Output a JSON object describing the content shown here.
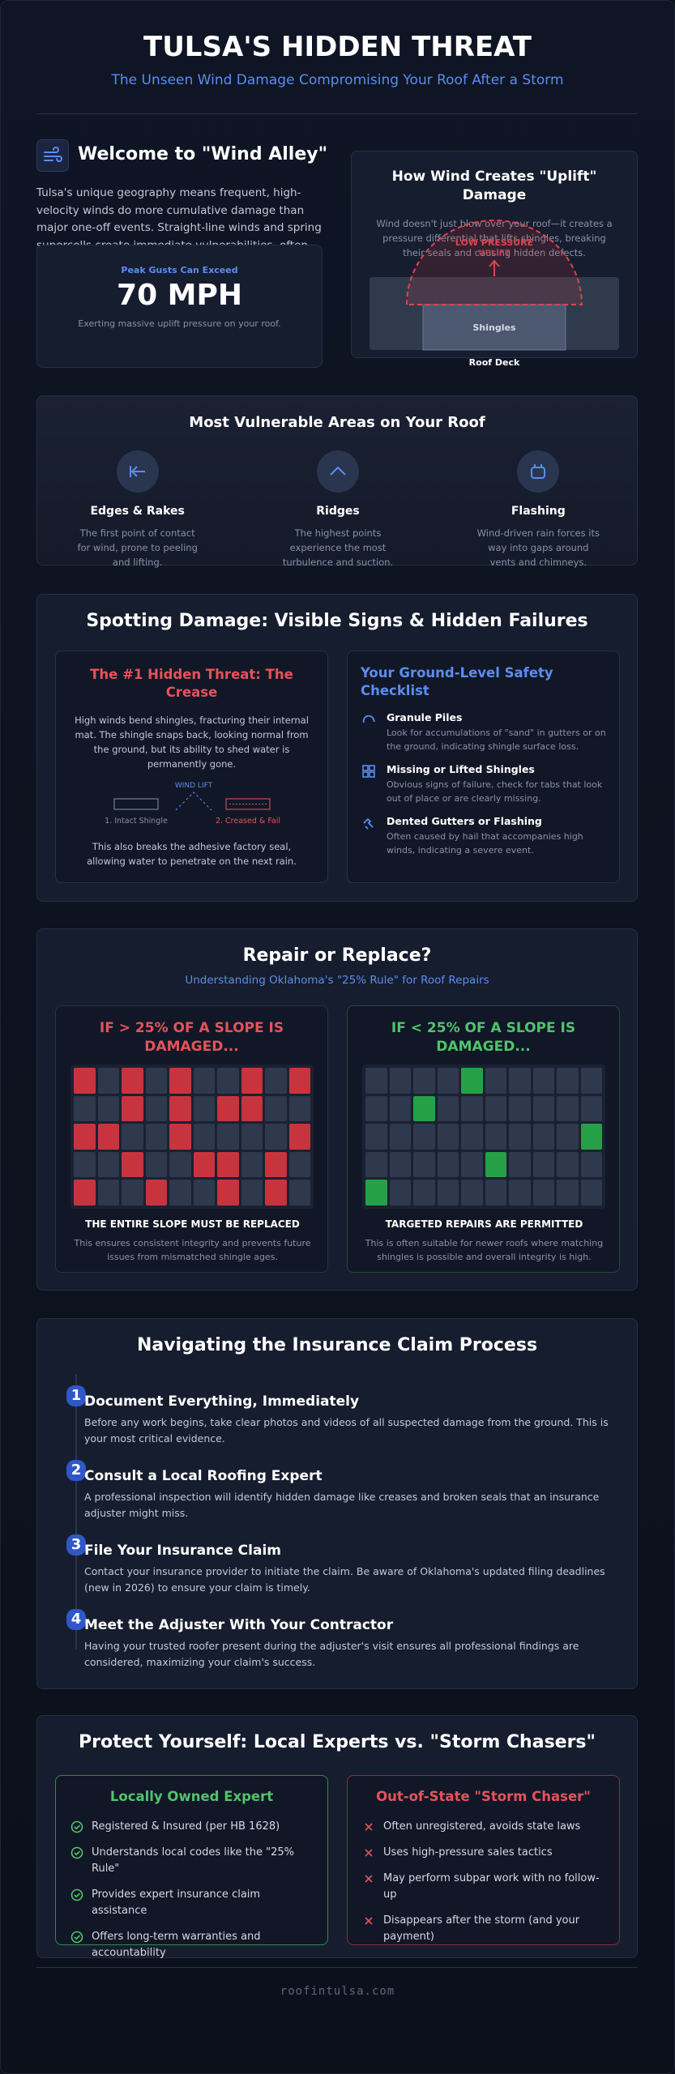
{
  "header": {
    "title": "TULSA'S HIDDEN THREAT",
    "subtitle": "The Unseen Wind Damage Compromising Your Roof After a Storm"
  },
  "intro": {
    "heading": "Welcome to \"Wind Alley\"",
    "body": "Tulsa's unique geography means frequent, high-velocity winds do more cumulative damage than major one-off events. Straight-line winds and spring supercells create immediate vulnerabilities, often without leaving a single shingle on your lawn.",
    "stat": {
      "label": "Peak Gusts Can Exceed",
      "value": "70 MPH",
      "note": "Exerting massive uplift pressure on your roof."
    }
  },
  "uplift": {
    "title": "How Wind Creates \"Uplift\" Damage",
    "body": "Wind doesn't just blow over your roof—it creates a pressure differential that lifts shingles, breaking their seals and causing hidden defects.",
    "diagram": {
      "pressure_label": "LOW PRESSURE",
      "lift_label": "UPLIFT",
      "shingles_label": "Shingles",
      "deck_label": "Roof Deck"
    }
  },
  "vulnerable": {
    "title": "Most Vulnerable Areas on Your Roof",
    "items": [
      {
        "title": "Edges & Rakes",
        "body": "The first point of contact for wind, prone to peeling and lifting."
      },
      {
        "title": "Ridges",
        "body": "The highest points experience the most turbulence and suction."
      },
      {
        "title": "Flashing",
        "body": "Wind-driven rain forces its way into gaps around vents and chimneys."
      }
    ]
  },
  "spotting": {
    "title": "Spotting Damage: Visible Signs & Hidden Failures",
    "crease": {
      "title": "The #1 Hidden Threat: The Crease",
      "body": "High winds bend shingles, fracturing their internal mat. The shingle snaps back, looking normal from the ground, but its ability to shed water is permanently gone.",
      "diagram": {
        "lift_label": "WIND LIFT",
        "intact_label": "1. Intact Shingle",
        "creased_label": "2. Creased & Fail"
      },
      "footer": "This also breaks the adhesive factory seal, allowing water to penetrate on the next rain."
    },
    "checklist": {
      "title": "Your Ground-Level Safety Checklist",
      "items": [
        {
          "title": "Granule Piles",
          "body": "Look for accumulations of \"sand\" in gutters or on the ground, indicating shingle surface loss."
        },
        {
          "title": "Missing or Lifted Shingles",
          "body": "Obvious signs of failure, check for tabs that look out of place or are clearly missing."
        },
        {
          "title": "Dented Gutters or Flashing",
          "body": "Often caused by hail that accompanies high winds, indicating a severe event."
        }
      ]
    }
  },
  "repair": {
    "title": "Repair or Replace?",
    "subtitle": "Understanding Oklahoma's \"25% Rule\" for Roof Repairs",
    "over": {
      "title": "IF > 25% OF A SLOPE IS DAMAGED...",
      "caption": "THE ENTIRE SLOPE MUST BE REPLACED",
      "body": "This ensures consistent integrity and prevents future issues from mismatched shingle ages."
    },
    "under": {
      "title": "IF < 25% OF A SLOPE IS DAMAGED...",
      "caption": "TARGETED REPAIRS ARE PERMITTED",
      "body": "This is often suitable for newer roofs where matching shingles is possible and overall integrity is high."
    }
  },
  "claims": {
    "title": "Navigating the Insurance Claim Process",
    "steps": [
      {
        "number": "1",
        "title": "Document Everything, Immediately",
        "body": "Before any work begins, take clear photos and videos of all suspected damage from the ground. This is your most critical evidence."
      },
      {
        "number": "2",
        "title": "Consult a Local Roofing Expert",
        "body": "A professional inspection will identify hidden damage like creases and broken seals that an insurance adjuster might miss."
      },
      {
        "number": "3",
        "title": "File Your Insurance Claim",
        "body": "Contact your insurance provider to initiate the claim. Be aware of Oklahoma's updated filing deadlines (new in 2026) to ensure your claim is timely."
      },
      {
        "number": "4",
        "title": "Meet the Adjuster With Your Contractor",
        "body": "Having your trusted roofer present during the adjuster's visit ensures all professional findings are considered, maximizing your claim's success."
      }
    ]
  },
  "protect": {
    "title": "Protect Yourself: Local Experts vs. \"Storm Chasers\"",
    "local": {
      "title": "Locally Owned Expert",
      "items": [
        "Registered & Insured (per HB 1628)",
        "Understands local codes like the \"25% Rule\"",
        "Provides expert insurance claim assistance",
        "Offers long-term warranties and accountability"
      ]
    },
    "storm": {
      "title": "Out-of-State \"Storm Chaser\"",
      "items": [
        "Often unregistered, avoids state laws",
        "Uses high-pressure sales tactics",
        "May perform subpar work with no follow-up",
        "Disappears after the storm (and your payment)"
      ]
    }
  },
  "footer": {
    "site": "roofintulsa.com"
  }
}
